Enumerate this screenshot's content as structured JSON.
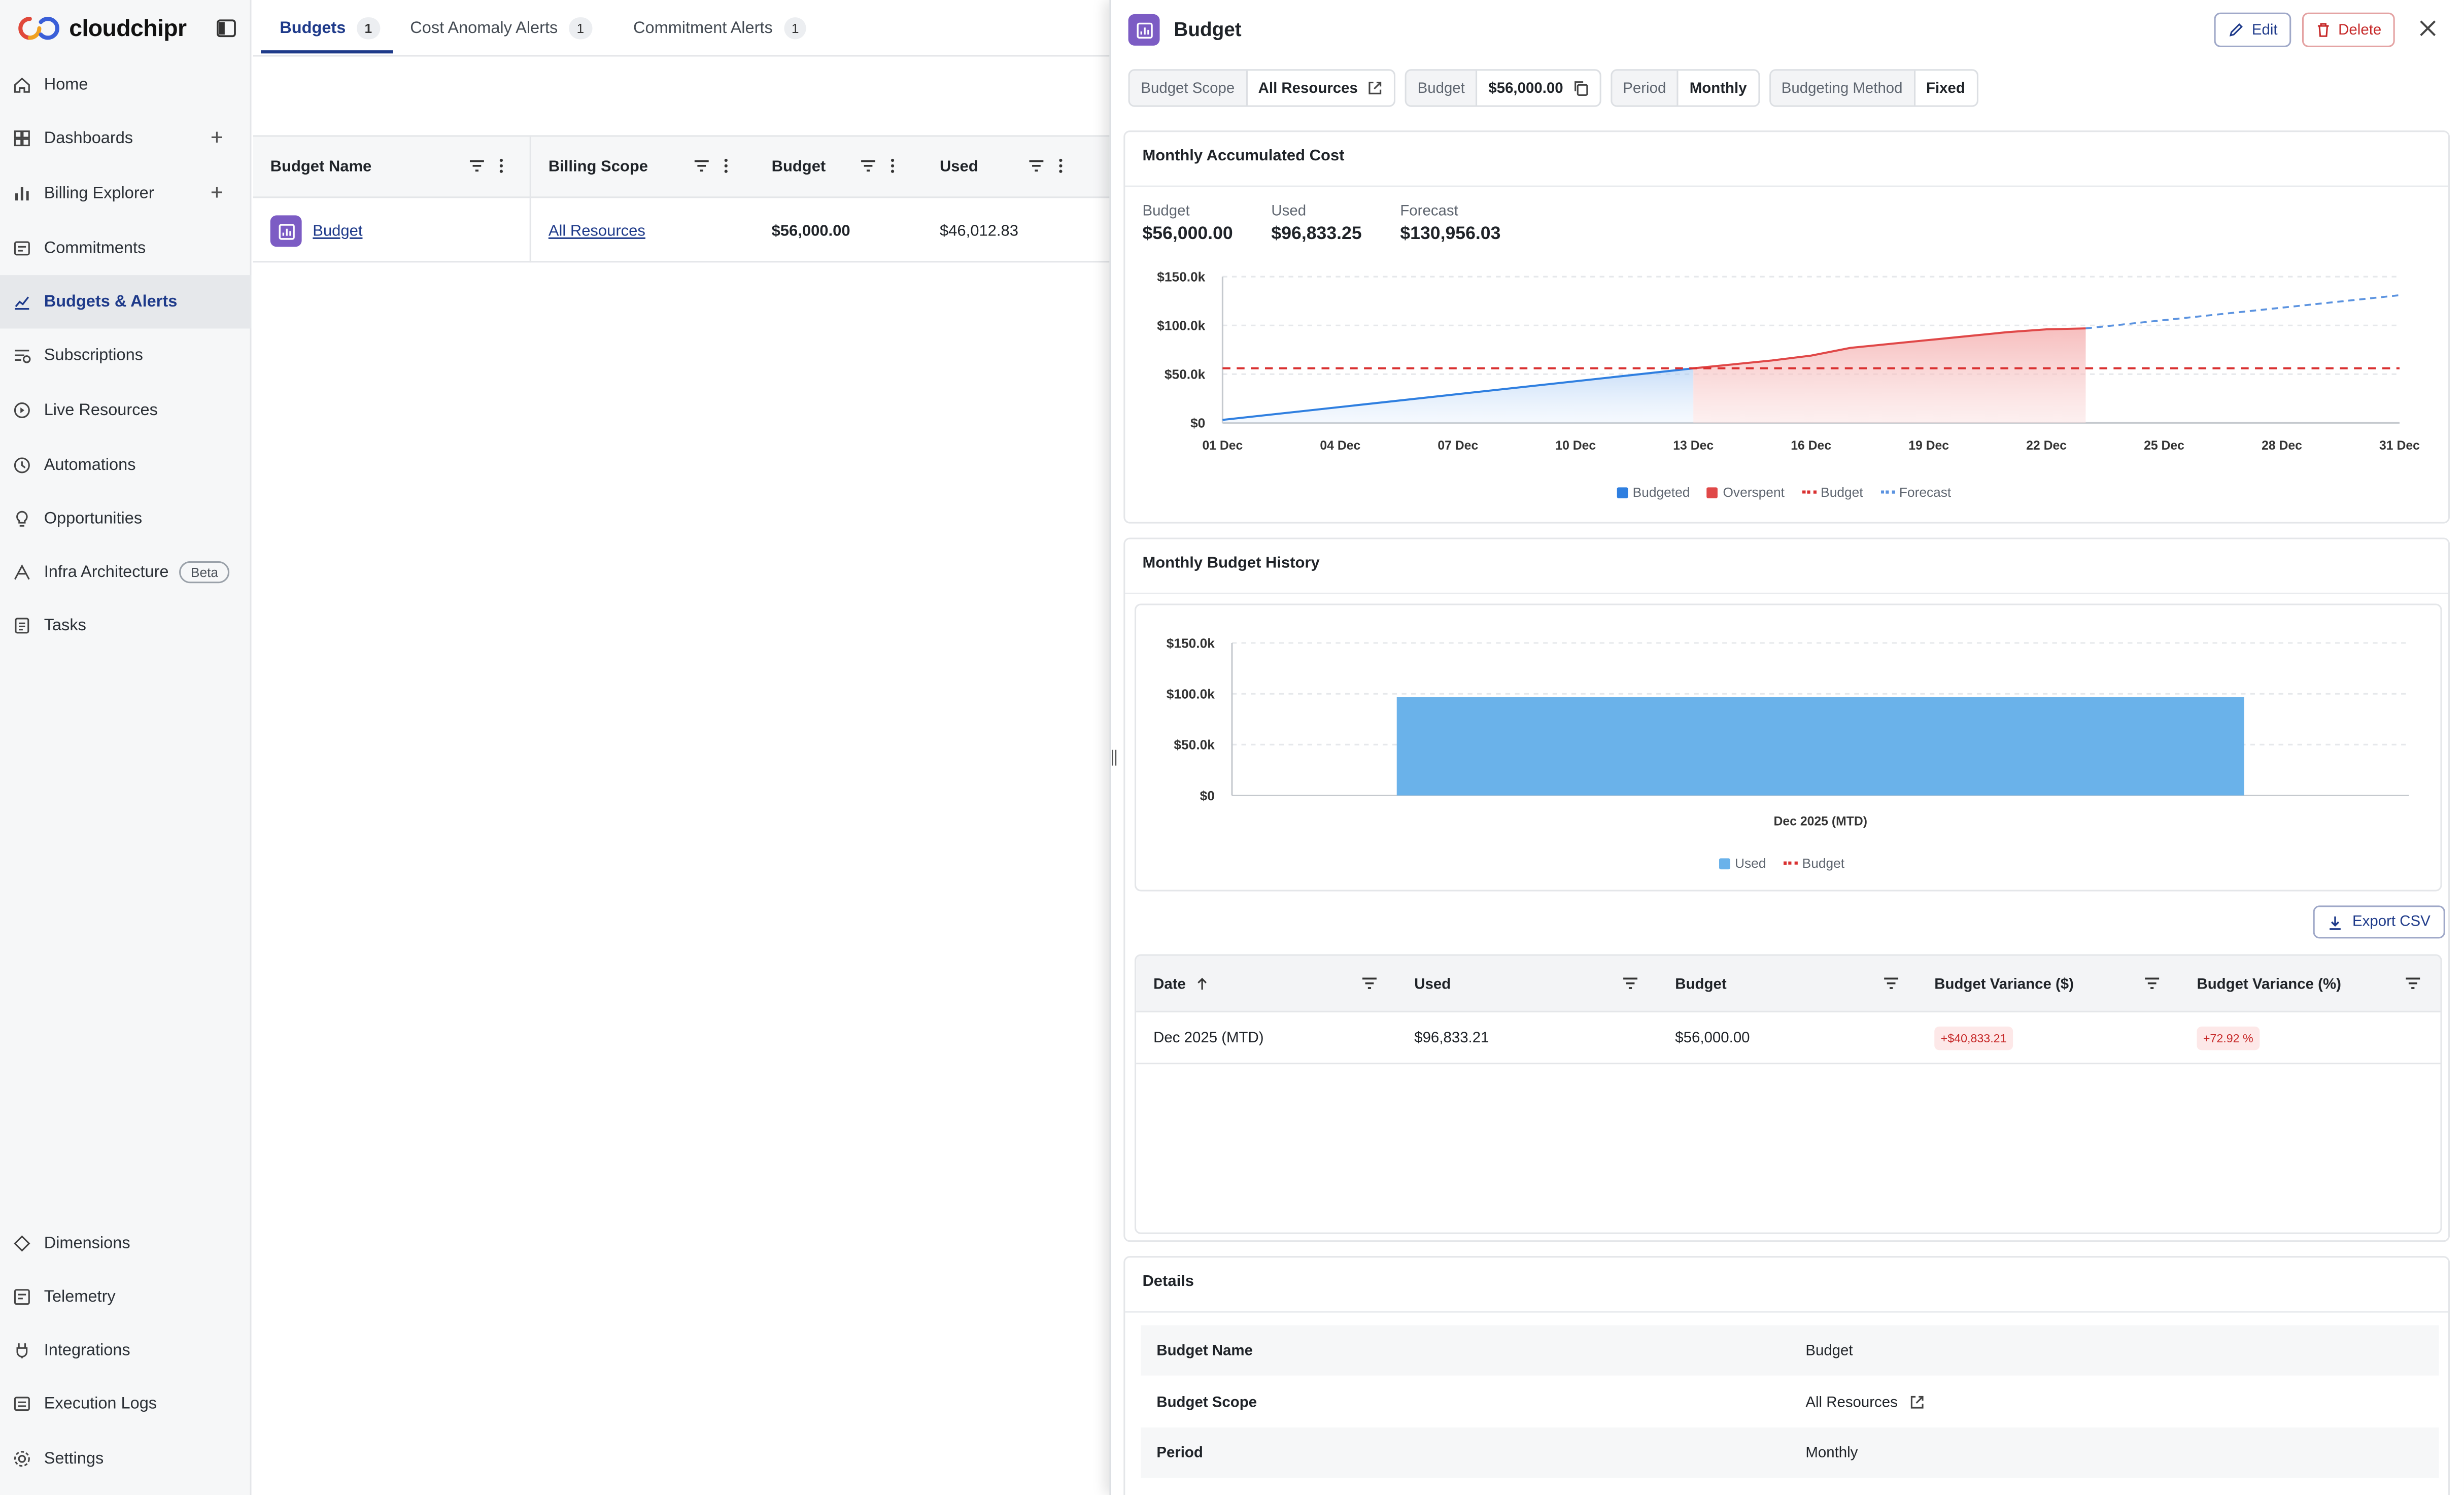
{
  "app": {
    "brand": "cloudchipr"
  },
  "sidebar": {
    "items": [
      {
        "label": "Home",
        "icon": "home-icon"
      },
      {
        "label": "Dashboards",
        "icon": "dashboards-icon"
      },
      {
        "label": "Billing Explorer",
        "icon": "billing-explorer-icon"
      },
      {
        "label": "Commitments",
        "icon": "commitments-icon"
      },
      {
        "label": "Budgets & Alerts",
        "icon": "budgets-alerts-icon"
      },
      {
        "label": "Subscriptions",
        "icon": "subscriptions-icon"
      },
      {
        "label": "Live Resources",
        "icon": "live-resources-icon"
      },
      {
        "label": "Automations",
        "icon": "automations-icon"
      },
      {
        "label": "Opportunities",
        "icon": "opportunities-icon"
      },
      {
        "label": "Infra Architecture",
        "icon": "infra-architecture-icon",
        "badge": "Beta"
      },
      {
        "label": "Tasks",
        "icon": "tasks-icon"
      }
    ],
    "bottom_items": [
      {
        "label": "Dimensions",
        "icon": "dimensions-icon"
      },
      {
        "label": "Telemetry",
        "icon": "telemetry-icon"
      },
      {
        "label": "Integrations",
        "icon": "integrations-icon"
      },
      {
        "label": "Execution Logs",
        "icon": "execution-logs-icon"
      },
      {
        "label": "Settings",
        "icon": "settings-icon"
      }
    ]
  },
  "tabs": [
    {
      "label": "Budgets",
      "count": "1"
    },
    {
      "label": "Cost Anomaly Alerts",
      "count": "1"
    },
    {
      "label": "Commitment Alerts",
      "count": "1"
    }
  ],
  "budget_table": {
    "columns": [
      "Budget Name",
      "Billing Scope",
      "Budget",
      "Used"
    ],
    "rows": [
      {
        "name": "Budget",
        "scope": "All Resources",
        "budget": "$56,000.00",
        "used": "$46,012.83"
      }
    ]
  },
  "drawer": {
    "title": "Budget",
    "edit_label": "Edit",
    "delete_label": "Delete",
    "chips": [
      {
        "key": "Budget Scope",
        "value": "All Resources"
      },
      {
        "key": "Budget",
        "value": "$56,000.00"
      },
      {
        "key": "Period",
        "value": "Monthly"
      },
      {
        "key": "Budgeting Method",
        "value": "Fixed"
      }
    ],
    "accumulated": {
      "title": "Monthly Accumulated Cost",
      "summary": [
        {
          "key": "Budget",
          "value": "$56,000.00"
        },
        {
          "key": "Used",
          "value": "$96,833.25"
        },
        {
          "key": "Forecast",
          "value": "$130,956.03"
        }
      ],
      "legend": [
        "Budgeted",
        "Overspent",
        "Budget",
        "Forecast"
      ]
    },
    "history": {
      "title": "Monthly Budget History",
      "legend": [
        "Used",
        "Budget"
      ],
      "export_label": "Export CSV",
      "columns": [
        "Date",
        "Used",
        "Budget",
        "Budget Variance ($)",
        "Budget Variance (%)"
      ],
      "rows": [
        {
          "date": "Dec 2025 (MTD)",
          "used": "$96,833.21",
          "budget": "$56,000.00",
          "var_abs": "+$40,833.21",
          "var_pct": "+72.92 %"
        }
      ]
    },
    "details": {
      "title": "Details",
      "rows": [
        {
          "key": "Budget Name",
          "value": "Budget"
        },
        {
          "key": "Budget Scope",
          "value": "All Resources"
        },
        {
          "key": "Period",
          "value": "Monthly"
        }
      ]
    }
  },
  "colors": {
    "accent": "#1e3a8a",
    "budgeted": "#2f7fe0",
    "overspent": "#e04848",
    "used_bar": "#6ab2ea",
    "budget_line": "#d93030",
    "forecast": "#5b93e0"
  },
  "chart_data": [
    {
      "type": "area",
      "title": "Monthly Accumulated Cost",
      "xlabel": "",
      "ylabel": "",
      "x_ticks": [
        "01 Dec",
        "04 Dec",
        "07 Dec",
        "10 Dec",
        "13 Dec",
        "16 Dec",
        "19 Dec",
        "22 Dec",
        "25 Dec",
        "28 Dec",
        "31 Dec"
      ],
      "y_ticks": [
        "$0",
        "$50.0k",
        "$100.0k",
        "$150.0k"
      ],
      "ylim": [
        0,
        150000
      ],
      "x_day_range": [
        1,
        31
      ],
      "budget_line": 56000,
      "series": [
        {
          "name": "Budgeted",
          "x": [
            1,
            13.0
          ],
          "values": [
            3000,
            56000
          ]
        },
        {
          "name": "Overspent",
          "x": [
            13.0,
            14,
            15,
            16,
            17,
            18,
            19,
            20,
            21,
            22,
            23
          ],
          "values": [
            56000,
            60000,
            64000,
            69000,
            77000,
            81000,
            85000,
            89000,
            93000,
            96000,
            97000
          ]
        },
        {
          "name": "Forecast",
          "x": [
            23,
            31
          ],
          "values": [
            97000,
            131000
          ]
        }
      ]
    },
    {
      "type": "bar",
      "title": "Monthly Budget History",
      "categories": [
        "Dec 2025 (MTD)"
      ],
      "y_ticks": [
        "$0",
        "$50.0k",
        "$100.0k",
        "$150.0k"
      ],
      "ylim": [
        0,
        150000
      ],
      "budget_line": 56000,
      "series": [
        {
          "name": "Used",
          "values": [
            96833.21
          ]
        }
      ]
    }
  ]
}
